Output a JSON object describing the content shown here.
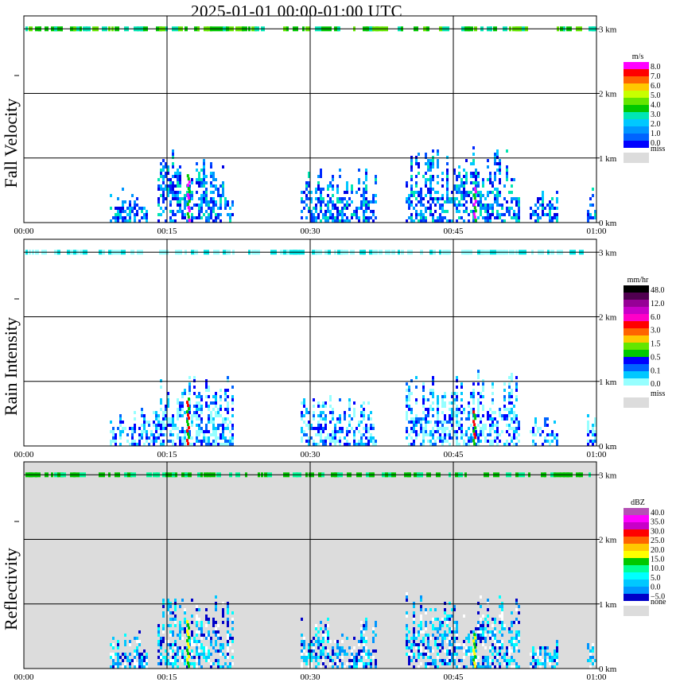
{
  "title": "2025-01-01   00:00-01:00 UTC",
  "chart_data": [
    {
      "type": "heatmap",
      "ylabel": "Fall Velocity",
      "x_ticks": [
        "00:00",
        "00:15",
        "00:30",
        "00:45",
        "01:00"
      ],
      "y_ticks": [
        "0 km",
        "1 km",
        "2 km",
        "3 km"
      ],
      "xlim": [
        "00:00",
        "01:00"
      ],
      "ylim_km": [
        0,
        3.2
      ],
      "grid": true,
      "background": "#ffffff",
      "colorbar": {
        "unit": "m/s",
        "labels": [
          "8.0",
          "7.0",
          "6.0",
          "5.0",
          "4.0",
          "3.0",
          "2.0",
          "1.0",
          "0.0"
        ],
        "colors": [
          "#ff00ff",
          "#ff0000",
          "#ff6400",
          "#ffc800",
          "#c8ff00",
          "#64e600",
          "#00c800",
          "#00e6b4",
          "#00c8ff",
          "#0096ff",
          "#0064ff",
          "#0000ff"
        ],
        "miss_label": "miss",
        "miss_color": "#dcdcdc"
      },
      "echo_palette": [
        "#0028ff",
        "#0050ff",
        "#0000e6",
        "#0096ff",
        "#00c8ff",
        "#00e6b4"
      ],
      "highlight_palette": [
        "#ff00ff",
        "#00c800"
      ],
      "top_band_palette": [
        "#00c800",
        "#64e600",
        "#00e6b4"
      ],
      "echo_spans": [
        {
          "start": "00:09",
          "end": "00:13",
          "top_km": 0.6
        },
        {
          "start": "00:14",
          "end": "00:20",
          "top_km": 1.2
        },
        {
          "start": "00:20",
          "end": "00:22",
          "top_km": 0.9
        },
        {
          "start": "00:29",
          "end": "00:37",
          "top_km": 0.9
        },
        {
          "start": "00:40",
          "end": "00:52",
          "top_km": 1.2
        },
        {
          "start": "00:53",
          "end": "00:56",
          "top_km": 0.6
        },
        {
          "start": "00:59",
          "end": "01:00",
          "top_km": 0.6
        }
      ]
    },
    {
      "type": "heatmap",
      "ylabel": "Rain Intensity",
      "x_ticks": [
        "00:00",
        "00:15",
        "00:30",
        "00:45",
        "01:00"
      ],
      "y_ticks": [
        "0 km",
        "1 km",
        "2 km",
        "3 km"
      ],
      "xlim": [
        "00:00",
        "01:00"
      ],
      "ylim_km": [
        0,
        3.2
      ],
      "grid": true,
      "background": "#ffffff",
      "colorbar": {
        "unit": "mm/hr",
        "labels": [
          "48.0",
          "12.0",
          "6.0",
          "3.0",
          "1.5",
          "0.5",
          "0.1",
          "0.0"
        ],
        "colors": [
          "#000000",
          "#500050",
          "#960096",
          "#c800c8",
          "#ff00c8",
          "#ff0000",
          "#ff6400",
          "#ffc800",
          "#64e600",
          "#00c800",
          "#0000ff",
          "#0064ff",
          "#00c8ff",
          "#96ffff",
          "#ffffff"
        ],
        "miss_label": "miss",
        "miss_color": "#dcdcdc"
      },
      "echo_palette": [
        "#96ffff",
        "#96ffff",
        "#00c8ff",
        "#0064ff",
        "#0000ff"
      ],
      "highlight_palette": [
        "#00c800",
        "#ff0000"
      ],
      "top_band_palette": [
        "#96ffff",
        "#00e6e6"
      ],
      "echo_spans": [
        {
          "start": "00:09",
          "end": "00:14",
          "top_km": 0.6
        },
        {
          "start": "00:14",
          "end": "00:22",
          "top_km": 1.2
        },
        {
          "start": "00:29",
          "end": "00:37",
          "top_km": 0.9
        },
        {
          "start": "00:40",
          "end": "00:52",
          "top_km": 1.2
        },
        {
          "start": "00:53",
          "end": "00:56",
          "top_km": 0.6
        },
        {
          "start": "00:59",
          "end": "01:00",
          "top_km": 0.6
        }
      ]
    },
    {
      "type": "heatmap",
      "ylabel": "Reflectivity",
      "x_ticks": [
        "00:00",
        "00:15",
        "00:30",
        "00:45",
        "01:00"
      ],
      "y_ticks": [
        "0 km",
        "1 km",
        "2 km",
        "3 km"
      ],
      "xlim": [
        "00:00",
        "01:00"
      ],
      "ylim_km": [
        0,
        3.2
      ],
      "grid": true,
      "background": "#dcdcdc",
      "colorbar": {
        "unit": "dBZ",
        "labels": [
          "40.0",
          "35.0",
          "30.0",
          "25.0",
          "20.0",
          "15.0",
          "10.0",
          "5.0",
          "0.0",
          "−5.0"
        ],
        "colors": [
          "#b450b4",
          "#ff00ff",
          "#c800c8",
          "#ff0000",
          "#ff6400",
          "#ffc800",
          "#ffff00",
          "#00c800",
          "#00ff96",
          "#00ffff",
          "#00c8ff",
          "#0096ff",
          "#0000c8"
        ],
        "miss_label": "none",
        "miss_color": "#dcdcdc"
      },
      "echo_palette": [
        "#0000c8",
        "#0096ff",
        "#00c8ff",
        "#00ffff",
        "#ffffff"
      ],
      "highlight_palette": [
        "#00c800",
        "#ffff00"
      ],
      "top_band_palette": [
        "#00c800",
        "#00ff96"
      ],
      "echo_spans": [
        {
          "start": "00:09",
          "end": "00:13",
          "top_km": 0.6
        },
        {
          "start": "00:14",
          "end": "00:22",
          "top_km": 1.2
        },
        {
          "start": "00:29",
          "end": "00:37",
          "top_km": 0.9
        },
        {
          "start": "00:40",
          "end": "00:52",
          "top_km": 1.2
        },
        {
          "start": "00:53",
          "end": "00:56",
          "top_km": 0.6
        },
        {
          "start": "00:59",
          "end": "01:00",
          "top_km": 0.6
        }
      ]
    }
  ]
}
